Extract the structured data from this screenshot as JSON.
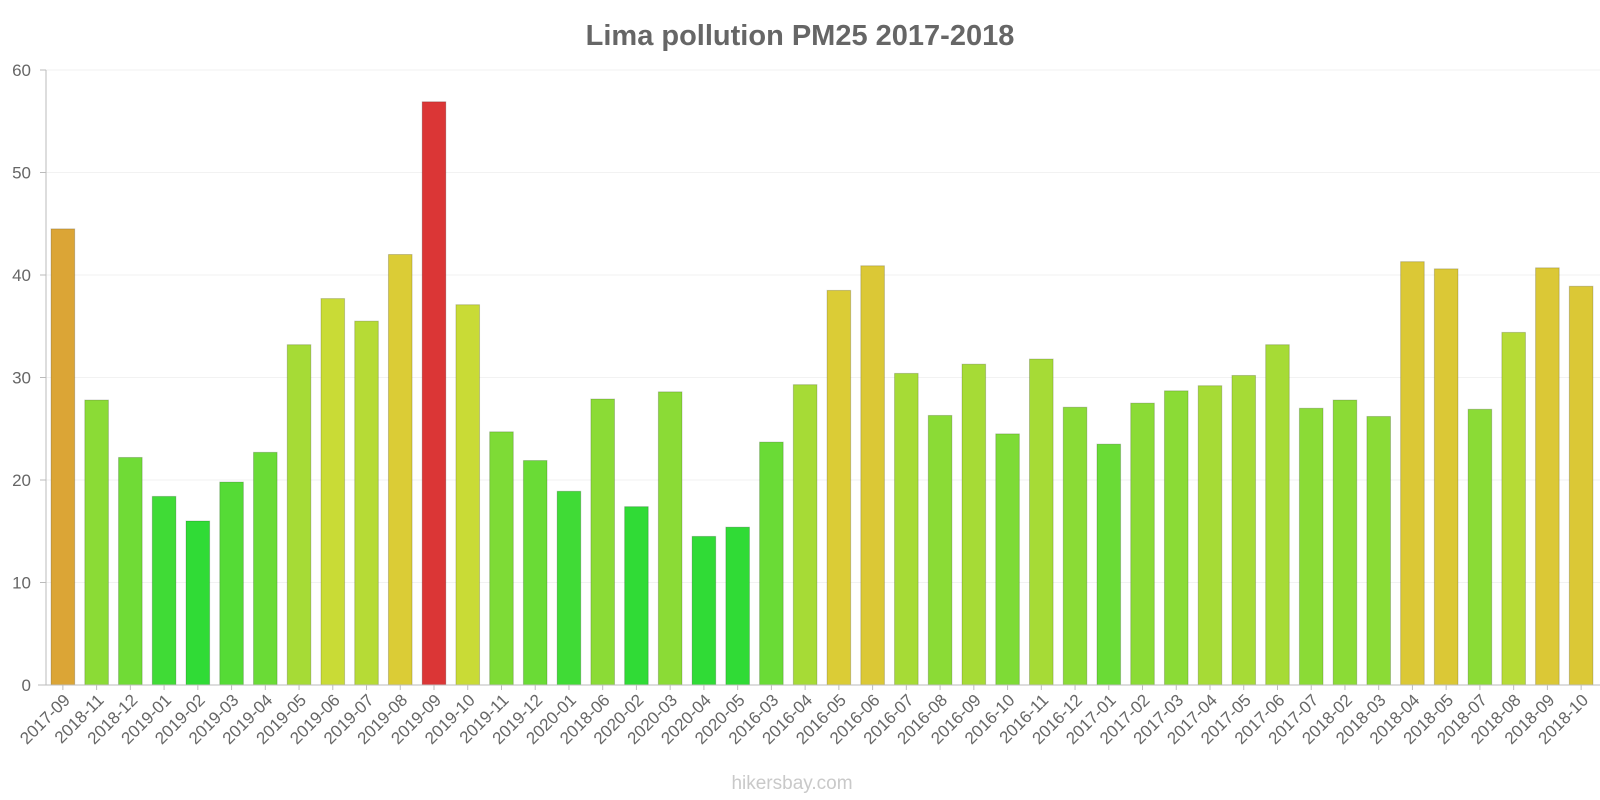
{
  "chart_data": {
    "type": "bar",
    "title": "Lima pollution PM25 2017-2018",
    "xlabel": "",
    "ylabel": "",
    "ylim": [
      0,
      60
    ],
    "yticks": [
      0,
      10,
      20,
      30,
      40,
      50,
      60
    ],
    "grid": true,
    "categories": [
      "2017-09",
      "2018-11",
      "2018-12",
      "2019-01",
      "2019-02",
      "2019-03",
      "2019-04",
      "2019-05",
      "2019-06",
      "2019-07",
      "2019-08",
      "2019-09",
      "2019-10",
      "2019-11",
      "2019-12",
      "2020-01",
      "2018-06",
      "2020-02",
      "2020-03",
      "2020-04",
      "2020-05",
      "2016-03",
      "2016-04",
      "2016-05",
      "2016-06",
      "2016-07",
      "2016-08",
      "2016-09",
      "2016-10",
      "2016-11",
      "2016-12",
      "2017-01",
      "2017-02",
      "2017-03",
      "2017-04",
      "2017-05",
      "2017-06",
      "2017-07",
      "2018-02",
      "2018-03",
      "2018-04",
      "2018-05",
      "2018-07",
      "2018-08",
      "2018-09",
      "2018-10"
    ],
    "values": [
      44.5,
      27.8,
      22.2,
      18.4,
      16.0,
      19.8,
      22.7,
      33.2,
      37.7,
      35.5,
      42.0,
      56.9,
      37.1,
      24.7,
      21.9,
      18.9,
      27.9,
      17.4,
      28.6,
      14.5,
      15.4,
      23.7,
      29.3,
      38.5,
      40.9,
      30.4,
      26.3,
      31.3,
      24.5,
      31.8,
      27.1,
      23.5,
      27.5,
      28.7,
      29.2,
      30.2,
      33.2,
      27.0,
      27.8,
      26.2,
      41.3,
      40.6,
      26.9,
      34.4,
      40.7,
      38.9
    ],
    "colors": [
      "#dba536",
      "#8bdb36",
      "#70db36",
      "#40db36",
      "#30db36",
      "#55db36",
      "#6adb36",
      "#a6db36",
      "#c9db36",
      "#b6db36",
      "#dbcc36",
      "#db3636",
      "#c9db36",
      "#7edb36",
      "#6adb36",
      "#40db36",
      "#8bdb36",
      "#30db36",
      "#8bdb36",
      "#30db36",
      "#30db36",
      "#6adb36",
      "#a6db36",
      "#dbcc36",
      "#dbc836",
      "#a6db36",
      "#8bdb36",
      "#a6db36",
      "#7edb36",
      "#a6db36",
      "#8bdb36",
      "#6adb36",
      "#8bdb36",
      "#8bdb36",
      "#a6db36",
      "#a6db36",
      "#a6db36",
      "#8bdb36",
      "#8bdb36",
      "#8bdb36",
      "#dbc836",
      "#dbc836",
      "#8bdb36",
      "#b6db36",
      "#dbc836",
      "#dbc836"
    ],
    "watermark": "hikersbay.com"
  }
}
